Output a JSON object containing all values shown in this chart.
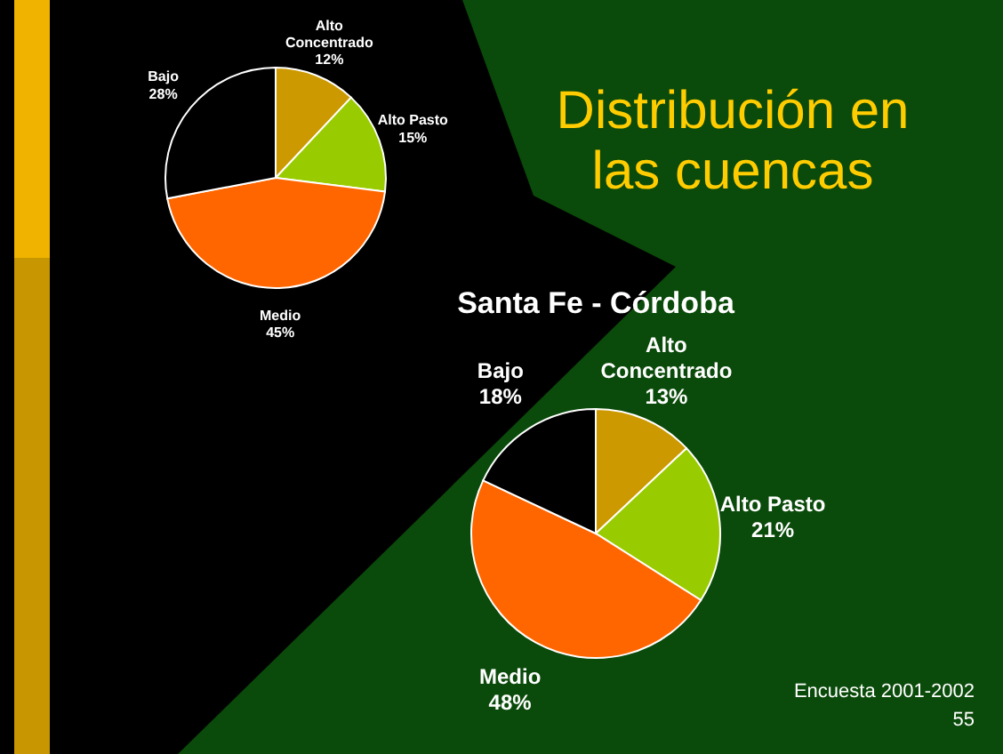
{
  "chart_data": [
    {
      "type": "pie",
      "categories": [
        "Alto Concentrado",
        "Alto Pasto",
        "Medio",
        "Bajo"
      ],
      "values": [
        12,
        15,
        45,
        28
      ],
      "value_labels": [
        "12%",
        "15%",
        "45%",
        "28%"
      ],
      "colors": [
        "#cc9900",
        "#99cc00",
        "#ff6600",
        "#000000"
      ]
    },
    {
      "type": "pie",
      "title": "Santa Fe - Córdoba",
      "categories": [
        "Alto Concentrado",
        "Alto Pasto",
        "Medio",
        "Bajo"
      ],
      "values": [
        13,
        21,
        48,
        18
      ],
      "value_labels": [
        "13%",
        "21%",
        "48%",
        "18%"
      ],
      "colors": [
        "#cc9900",
        "#99cc00",
        "#ff6600",
        "#000000"
      ]
    },
    {
      "type": "other",
      "title": "Distribución en las cuencas",
      "annotations": [
        "Encuesta 2001-2002",
        "55"
      ]
    }
  ]
}
